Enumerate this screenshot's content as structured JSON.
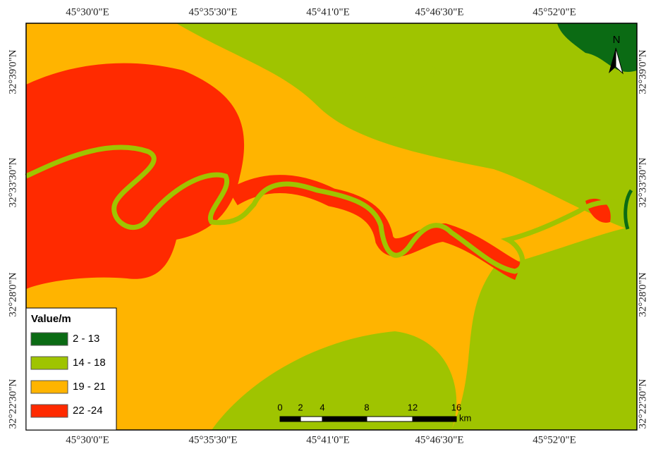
{
  "map": {
    "top_labels": [
      "45°30'0\"E",
      "45°35'30\"E",
      "45°41'0\"E",
      "45°46'30\"E",
      "45°52'0\"E"
    ],
    "bottom_labels": [
      "45°30'0\"E",
      "45°35'30\"E",
      "45°41'0\"E",
      "45°46'30\"E",
      "45°52'0\"E"
    ],
    "left_labels": [
      "32°39'0\"N",
      "32°33'30\"N",
      "32°28'0\"N",
      "32°22'30\"N"
    ],
    "right_labels": [
      "32°39'0\"N",
      "32°33'30\"N",
      "32°28'0\"N",
      "32°22'30\"N"
    ],
    "north": "N",
    "legend": {
      "title": "Value/m",
      "items": [
        {
          "label": "2 - 13",
          "color": "#0b6b14"
        },
        {
          "label": "14 - 18",
          "color": "#9fc400"
        },
        {
          "label": "19 - 21",
          "color": "#ffb400"
        },
        {
          "label": "22 -24",
          "color": "#ff2a00"
        }
      ]
    },
    "scale_bar": {
      "labels": [
        "0",
        "2",
        "4",
        "8",
        "12",
        "16"
      ],
      "unit": "km"
    }
  }
}
